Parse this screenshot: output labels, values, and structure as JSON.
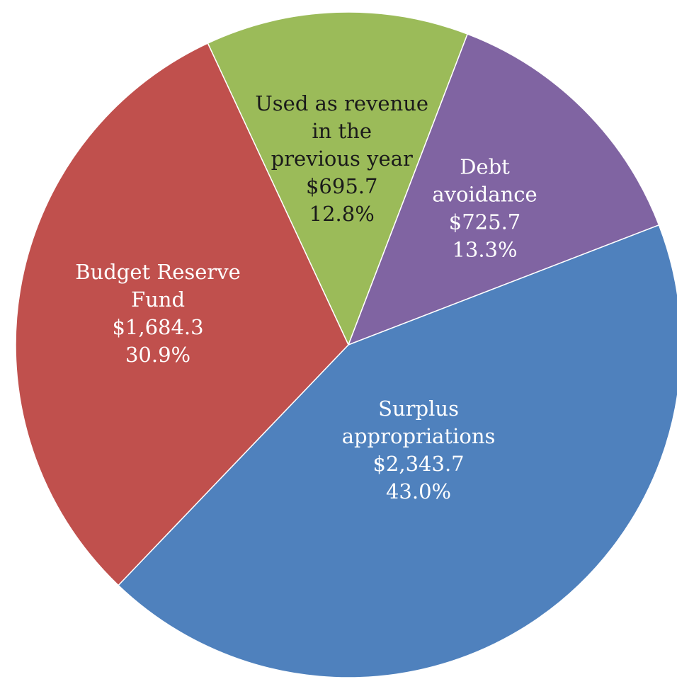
{
  "chart_data": {
    "type": "pie",
    "title": "",
    "slices": [
      {
        "label_lines": [
          "Used as revenue",
          "in the",
          "previous year"
        ],
        "value": 695.7,
        "value_text": "$695.7",
        "percent_text": "12.8%",
        "color": "#9BBB59",
        "text_color": "#1a1a1a"
      },
      {
        "label_lines": [
          "Debt",
          "avoidance"
        ],
        "value": 725.7,
        "value_text": "$725.7",
        "percent_text": "13.3%",
        "color": "#8064A2",
        "text_color": "#ffffff"
      },
      {
        "label_lines": [
          "Surplus",
          "appropriations"
        ],
        "value": 2343.7,
        "value_text": "$2,343.7",
        "percent_text": "43.0%",
        "color": "#4F81BD",
        "text_color": "#ffffff"
      },
      {
        "label_lines": [
          "Budget Reserve",
          "Fund"
        ],
        "value": 1684.3,
        "value_text": "$1,684.3",
        "percent_text": "30.9%",
        "color": "#C0504D",
        "text_color": "#ffffff"
      }
    ],
    "start_angle_degrees": -25,
    "direction": "clockwise",
    "edge_color": "#ffffff"
  }
}
